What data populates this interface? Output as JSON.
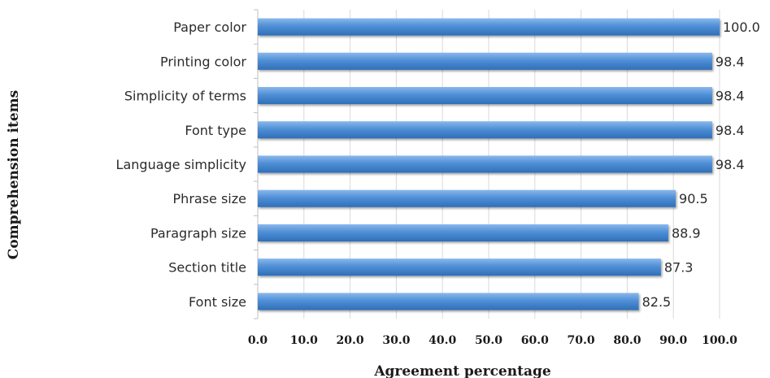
{
  "chart_data": {
    "type": "bar",
    "orientation": "horizontal",
    "categories": [
      "Paper color",
      "Printing color",
      "Simplicity of terms",
      "Font type",
      "Language simplicity",
      "Phrase size",
      "Paragraph size",
      "Section title",
      "Font size"
    ],
    "values": [
      100.0,
      98.4,
      98.4,
      98.4,
      98.4,
      90.5,
      88.9,
      87.3,
      82.5
    ],
    "value_labels": [
      "100.0",
      "98.4",
      "98.4",
      "98.4",
      "98.4",
      "90.5",
      "88.9",
      "87.3",
      "82.5"
    ],
    "xlabel": "Agreement percentage",
    "ylabel": "Comprehension items",
    "xlim": [
      0,
      100
    ],
    "xticks": [
      0,
      10,
      20,
      30,
      40,
      50,
      60,
      70,
      80,
      90,
      100
    ],
    "xtick_labels": [
      "0.0",
      "10.0",
      "20.0",
      "30.0",
      "40.0",
      "50.0",
      "60.0",
      "70.0",
      "80.0",
      "90.0",
      "100.0"
    ],
    "grid": true,
    "legend": "none",
    "bar_color": "#4f8fd6"
  }
}
